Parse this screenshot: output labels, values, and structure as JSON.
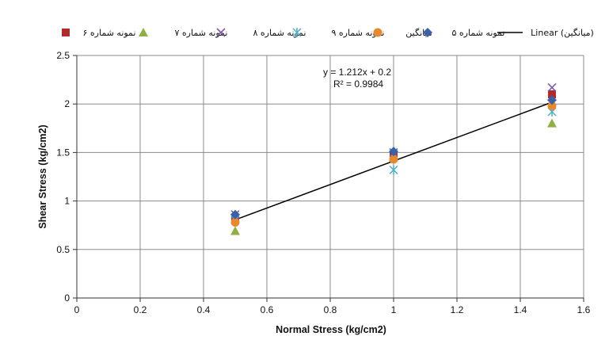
{
  "chart_data": {
    "type": "scatter",
    "xlabel": "Normal Stress (kg/cm2)",
    "ylabel": "Shear Stress (kg/cm2)",
    "xlim": [
      0,
      1.6
    ],
    "ylim": [
      0,
      2.5
    ],
    "x_ticks": [
      0,
      0.2,
      0.4,
      0.6,
      0.8,
      1,
      1.2,
      1.4,
      1.6
    ],
    "x_tick_labels": [
      "0",
      "0.2",
      "0.4",
      "0.6",
      "0.8",
      "1",
      "1.2",
      "1.4",
      "1.6"
    ],
    "y_ticks": [
      0,
      0.5,
      1,
      1.5,
      2,
      2.5
    ],
    "y_tick_labels": [
      "0",
      "0.5",
      "1",
      "1.5",
      "2",
      "2.5"
    ],
    "grid": true,
    "legend_position": "top",
    "series": [
      {
        "name": "نمونه شماره ۶",
        "marker": "square",
        "color": "#b22b2b",
        "x": [
          0.5,
          1,
          1.5
        ],
        "y": [
          0.82,
          1.48,
          2.1
        ]
      },
      {
        "name": "نمونه شماره ۷",
        "marker": "triangle",
        "color": "#8fb043",
        "x": [
          0.5,
          1,
          1.5
        ],
        "y": [
          0.69,
          1.45,
          1.8
        ]
      },
      {
        "name": "نمونه شماره ۸",
        "marker": "x",
        "color": "#7b5ba6",
        "x": [
          0.5,
          1,
          1.5
        ],
        "y": [
          0.86,
          1.5,
          2.17
        ]
      },
      {
        "name": "نمونه شماره ۹",
        "marker": "star",
        "color": "#4ab0c8",
        "x": [
          0.5,
          1,
          1.5
        ],
        "y": [
          0.81,
          1.32,
          1.92
        ]
      },
      {
        "name": "میانگین",
        "marker": "circle",
        "color": "#e8892e",
        "x": [
          0.5,
          1,
          1.5
        ],
        "y": [
          0.78,
          1.43,
          1.98
        ]
      },
      {
        "name": "نمونه شماره ۵",
        "marker": "diamond",
        "color": "#3a62a8",
        "x": [
          0.5,
          1,
          1.5
        ],
        "y": [
          0.86,
          1.51,
          2.04
        ]
      }
    ],
    "trendline": {
      "name": "Linear (میانگین)",
      "color": "#000000",
      "slope": 1.212,
      "intercept": 0.2,
      "x_range": [
        0.5,
        1.5
      ],
      "equation": "y = 1.212x + 0.2",
      "r_squared": "R² = 0.9984"
    }
  }
}
